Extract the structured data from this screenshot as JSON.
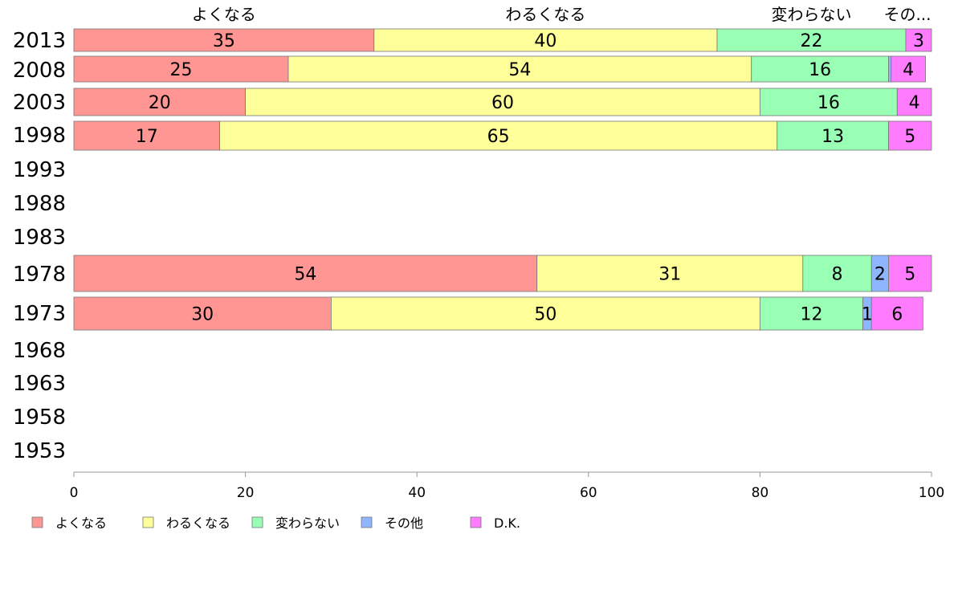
{
  "chart_data": {
    "type": "bar",
    "orientation": "horizontal",
    "stacked": true,
    "categories": [
      "2013",
      "2008",
      "2003",
      "1998",
      "1993",
      "1988",
      "1983",
      "1978",
      "1973",
      "1968",
      "1963",
      "1958",
      "1953"
    ],
    "series": [
      {
        "name": "よくなる",
        "color": "#ff9694",
        "values": [
          35,
          25,
          20,
          17,
          null,
          null,
          null,
          54,
          30,
          null,
          null,
          null,
          null
        ]
      },
      {
        "name": "わるくなる",
        "color": "#ffff99",
        "values": [
          40,
          54,
          60,
          65,
          null,
          null,
          null,
          31,
          50,
          null,
          null,
          null,
          null
        ]
      },
      {
        "name": "変わらない",
        "color": "#98ffb4",
        "values": [
          22,
          16,
          16,
          13,
          null,
          null,
          null,
          8,
          12,
          null,
          null,
          null,
          null
        ]
      },
      {
        "name": "その他",
        "color": "#8eb6ff",
        "values": [
          0,
          0.3,
          0,
          0,
          null,
          null,
          null,
          2,
          1,
          null,
          null,
          null,
          null
        ]
      },
      {
        "name": "D.K.",
        "color": "#ff7cff",
        "values": [
          3,
          4,
          4,
          5,
          null,
          null,
          null,
          5,
          6,
          null,
          null,
          null,
          null
        ]
      }
    ],
    "segment_labels": [
      [
        "35",
        "40",
        "22",
        "",
        "3"
      ],
      [
        "25",
        "54",
        "16",
        "",
        "4"
      ],
      [
        "20",
        "60",
        "16",
        "",
        "4"
      ],
      [
        "17",
        "65",
        "13",
        "",
        "5"
      ],
      [],
      [],
      [],
      [
        "54",
        "31",
        "8",
        "2",
        "5"
      ],
      [
        "30",
        "50",
        "12",
        "1",
        "6"
      ],
      [],
      [],
      [],
      []
    ],
    "top_labels": [
      "よくなる",
      "わるくなる",
      "変わらない",
      "その..."
    ],
    "xlim": [
      0,
      100
    ],
    "xticks": [
      0,
      20,
      40,
      60,
      80,
      100
    ],
    "legend_position": "bottom-left",
    "grid": false
  }
}
